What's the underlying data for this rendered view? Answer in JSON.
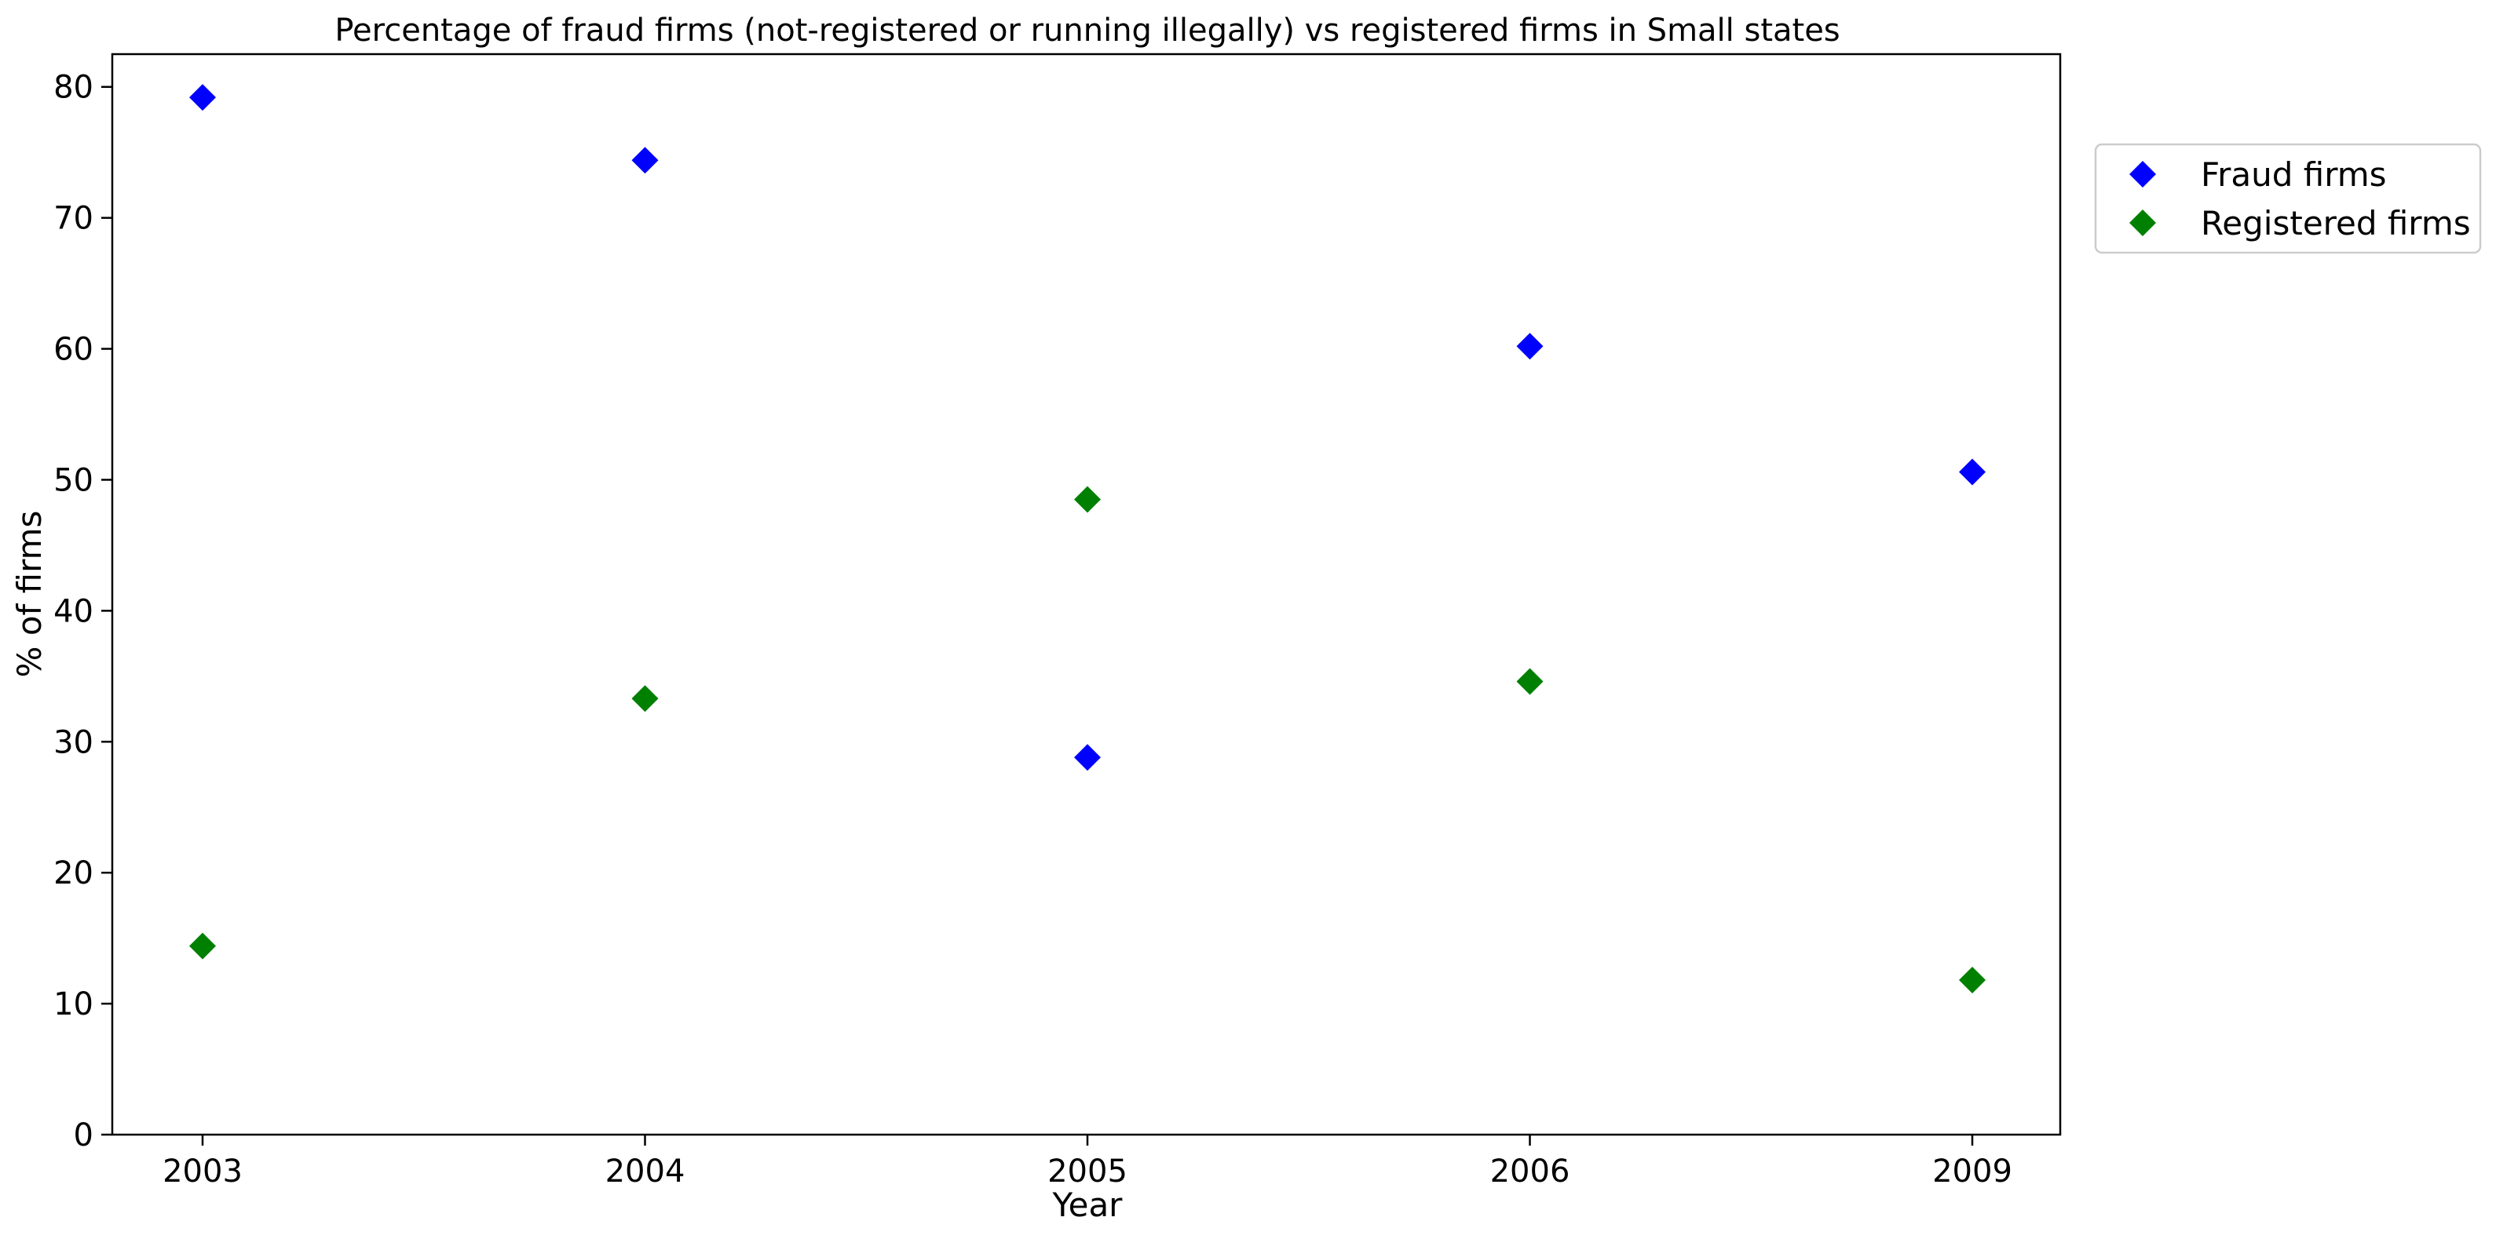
{
  "chart_data": {
    "type": "scatter",
    "title": "Percentage of fraud firms (not-registered or running illegally) vs registered firms in Small states",
    "xlabel": "Year",
    "ylabel": "% of firms",
    "categories": [
      "2003",
      "2004",
      "2005",
      "2006",
      "2009"
    ],
    "ylim": [
      0,
      82.5
    ],
    "yticks": [
      "0",
      "10",
      "20",
      "30",
      "40",
      "50",
      "60",
      "70",
      "80"
    ],
    "grid": false,
    "legend_placement": "outside top-right",
    "marker": "diamond",
    "series": [
      {
        "name": "Fraud firms",
        "color": "#0000ff",
        "values": [
          79.2,
          74.4,
          28.8,
          60.2,
          50.6
        ]
      },
      {
        "name": "Registered firms",
        "color": "#008000",
        "values": [
          14.4,
          33.3,
          48.5,
          34.6,
          11.8
        ]
      }
    ]
  }
}
